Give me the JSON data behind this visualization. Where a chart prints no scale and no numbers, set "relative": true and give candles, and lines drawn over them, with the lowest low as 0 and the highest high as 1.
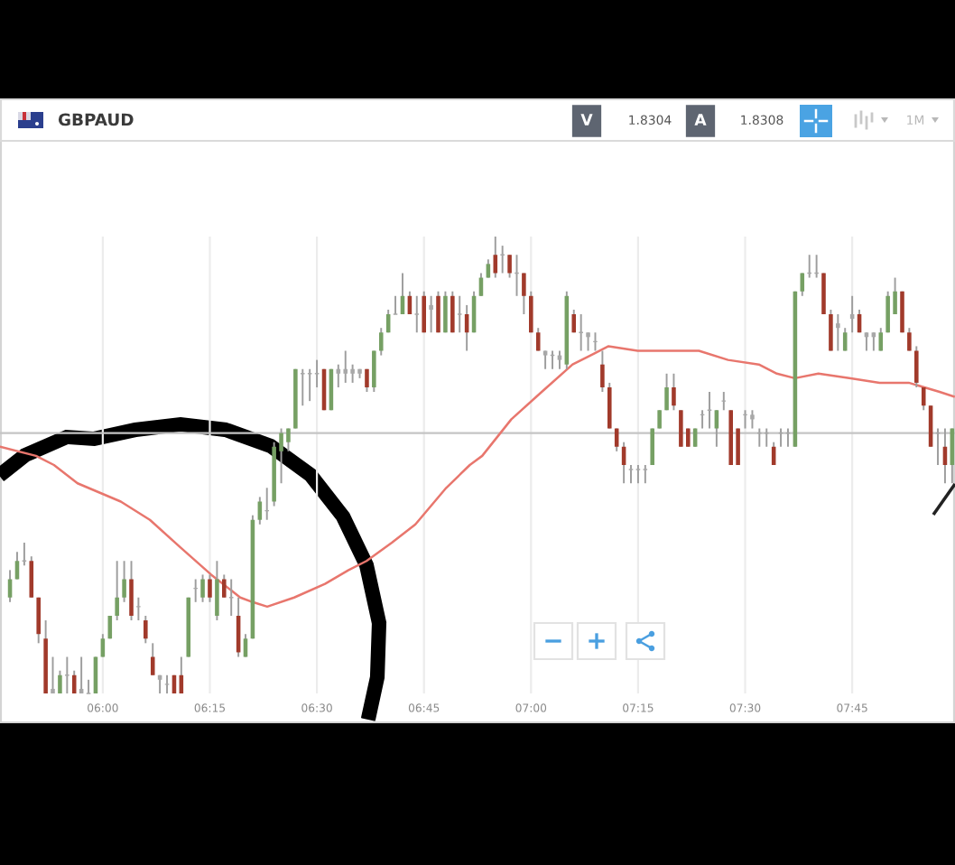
{
  "chart_data": {
    "type": "candlestick",
    "title": "GBPAUD",
    "relative": true,
    "x": [
      5.7833,
      5.8,
      5.8167,
      5.8333,
      5.85,
      5.8667,
      5.8833,
      5.9,
      5.9167,
      5.9333,
      5.95,
      5.9667,
      5.9833,
      6,
      6.0167,
      6.0333,
      6.05,
      6.0667,
      6.0833,
      6.1,
      6.1167,
      6.1333,
      6.15,
      6.1667,
      6.1833,
      6.2,
      6.2167,
      6.2333,
      6.25,
      6.2667,
      6.2833,
      6.3,
      6.3167,
      6.3333,
      6.35,
      6.3667,
      6.3833,
      6.4,
      6.4167,
      6.4333,
      6.45,
      6.4667,
      6.4833,
      6.5,
      6.5167,
      6.5333,
      6.55,
      6.5667,
      6.5833,
      6.6,
      6.6167,
      6.6333,
      6.65,
      6.6667,
      6.6833,
      6.7,
      6.7167,
      6.7333,
      6.75,
      6.7667,
      6.7833,
      6.8,
      6.8167,
      6.8333,
      6.85,
      6.8667,
      6.8833,
      6.9,
      6.9167,
      6.9333,
      6.95,
      6.9667,
      6.9833,
      7,
      7.0167,
      7.0333,
      7.05,
      7.0667,
      7.0833,
      7.1,
      7.1167,
      7.1333,
      7.15,
      7.1667,
      7.1833,
      7.2,
      7.2167,
      7.2333,
      7.25,
      7.2667,
      7.2833,
      7.3,
      7.3167,
      7.3333,
      7.35,
      7.3667,
      7.3833,
      7.4,
      7.4167,
      7.4333,
      7.45,
      7.4667,
      7.4833,
      7.5,
      7.5167,
      7.5333,
      7.55,
      7.5667,
      7.5833,
      7.6,
      7.6167,
      7.6333,
      7.65,
      7.6667,
      7.6833,
      7.7,
      7.7167,
      7.7333,
      7.75,
      7.7667,
      7.7833,
      7.8,
      7.8167,
      7.8333,
      7.85,
      7.8667,
      7.8833,
      7.9,
      7.9167,
      7.9333,
      7.95,
      7.9667,
      7.9833
    ],
    "ohlc": [
      [
        0.21,
        0.27,
        0.2,
        0.25
      ],
      [
        0.25,
        0.31,
        0.25,
        0.29
      ],
      [
        0.29,
        0.33,
        0.28,
        0.29
      ],
      [
        0.29,
        0.3,
        0.21,
        0.21
      ],
      [
        0.21,
        0.21,
        0.11,
        0.13
      ],
      [
        0.12,
        0.16,
        0.0,
        0.0
      ],
      [
        0.01,
        0.08,
        0.0,
        0.0
      ],
      [
        0.0,
        0.05,
        0.0,
        0.04
      ],
      [
        0.04,
        0.08,
        0.0,
        0.04
      ],
      [
        0.04,
        0.05,
        0.0,
        0.0
      ],
      [
        0.01,
        0.08,
        0.0,
        0.0
      ],
      [
        0.0,
        0.03,
        0.0,
        0.0
      ],
      [
        0.0,
        0.08,
        0.0,
        0.08
      ],
      [
        0.08,
        0.13,
        0.08,
        0.12
      ],
      [
        0.12,
        0.17,
        0.12,
        0.17
      ],
      [
        0.17,
        0.29,
        0.16,
        0.21
      ],
      [
        0.21,
        0.29,
        0.2,
        0.25
      ],
      [
        0.25,
        0.29,
        0.16,
        0.17
      ],
      [
        0.19,
        0.21,
        0.16,
        0.19
      ],
      [
        0.16,
        0.17,
        0.11,
        0.12
      ],
      [
        0.08,
        0.11,
        0.04,
        0.04
      ],
      [
        0.04,
        0.04,
        0.0,
        0.03
      ],
      [
        0.02,
        0.04,
        0.0,
        0.02
      ],
      [
        0.04,
        0.04,
        0.0,
        0.0
      ],
      [
        0.04,
        0.08,
        0.0,
        0.0
      ],
      [
        0.08,
        0.21,
        0.08,
        0.21
      ],
      [
        0.23,
        0.25,
        0.2,
        0.23
      ],
      [
        0.21,
        0.26,
        0.2,
        0.25
      ],
      [
        0.25,
        0.26,
        0.2,
        0.21
      ],
      [
        0.17,
        0.29,
        0.16,
        0.25
      ],
      [
        0.25,
        0.26,
        0.21,
        0.21
      ],
      [
        0.21,
        0.25,
        0.17,
        0.21
      ],
      [
        0.17,
        0.21,
        0.08,
        0.09
      ],
      [
        0.08,
        0.13,
        0.08,
        0.12
      ],
      [
        0.12,
        0.39,
        0.12,
        0.38
      ],
      [
        0.38,
        0.43,
        0.37,
        0.42
      ],
      [
        0.4,
        0.45,
        0.38,
        0.4
      ],
      [
        0.42,
        0.55,
        0.41,
        0.54
      ],
      [
        0.53,
        0.58,
        0.46,
        0.57
      ],
      [
        0.55,
        0.58,
        0.53,
        0.58
      ],
      [
        0.58,
        0.71,
        0.58,
        0.71
      ],
      [
        0.7,
        0.71,
        0.63,
        0.7
      ],
      [
        0.7,
        0.71,
        0.64,
        0.7
      ],
      [
        0.7,
        0.73,
        0.67,
        0.7
      ],
      [
        0.71,
        0.71,
        0.62,
        0.62
      ],
      [
        0.62,
        0.71,
        0.62,
        0.71
      ],
      [
        0.71,
        0.72,
        0.67,
        0.7
      ],
      [
        0.71,
        0.75,
        0.68,
        0.7
      ],
      [
        0.71,
        0.72,
        0.68,
        0.7
      ],
      [
        0.71,
        0.71,
        0.69,
        0.7
      ],
      [
        0.71,
        0.71,
        0.66,
        0.67
      ],
      [
        0.67,
        0.75,
        0.66,
        0.75
      ],
      [
        0.75,
        0.8,
        0.74,
        0.79
      ],
      [
        0.79,
        0.84,
        0.79,
        0.83
      ],
      [
        0.83,
        0.87,
        0.83,
        0.83
      ],
      [
        0.83,
        0.92,
        0.83,
        0.87
      ],
      [
        0.87,
        0.88,
        0.83,
        0.83
      ],
      [
        0.83,
        0.87,
        0.79,
        0.83
      ],
      [
        0.87,
        0.88,
        0.79,
        0.79
      ],
      [
        0.85,
        0.87,
        0.79,
        0.84
      ],
      [
        0.87,
        0.88,
        0.79,
        0.79
      ],
      [
        0.79,
        0.88,
        0.79,
        0.87
      ],
      [
        0.87,
        0.88,
        0.79,
        0.79
      ],
      [
        0.83,
        0.87,
        0.79,
        0.83
      ],
      [
        0.83,
        0.85,
        0.75,
        0.79
      ],
      [
        0.79,
        0.88,
        0.79,
        0.87
      ],
      [
        0.87,
        0.92,
        0.87,
        0.91
      ],
      [
        0.91,
        0.95,
        0.91,
        0.94
      ],
      [
        0.96,
        1.0,
        0.91,
        0.92
      ],
      [
        0.96,
        0.98,
        0.92,
        0.96
      ],
      [
        0.96,
        0.96,
        0.91,
        0.92
      ],
      [
        0.92,
        0.96,
        0.87,
        0.92
      ],
      [
        0.92,
        0.92,
        0.83,
        0.87
      ],
      [
        0.87,
        0.88,
        0.79,
        0.79
      ],
      [
        0.79,
        0.8,
        0.75,
        0.75
      ],
      [
        0.75,
        0.75,
        0.71,
        0.74
      ],
      [
        0.74,
        0.75,
        0.71,
        0.74
      ],
      [
        0.74,
        0.75,
        0.71,
        0.73
      ],
      [
        0.72,
        0.88,
        0.71,
        0.87
      ],
      [
        0.83,
        0.84,
        0.79,
        0.79
      ],
      [
        0.79,
        0.83,
        0.75,
        0.79
      ],
      [
        0.79,
        0.79,
        0.75,
        0.78
      ],
      [
        0.77,
        0.79,
        0.75,
        0.77
      ],
      [
        0.72,
        0.75,
        0.66,
        0.67
      ],
      [
        0.67,
        0.68,
        0.58,
        0.58
      ],
      [
        0.58,
        0.58,
        0.53,
        0.54
      ],
      [
        0.54,
        0.55,
        0.46,
        0.5
      ],
      [
        0.49,
        0.5,
        0.46,
        0.49
      ],
      [
        0.49,
        0.5,
        0.46,
        0.49
      ],
      [
        0.49,
        0.5,
        0.46,
        0.49
      ],
      [
        0.5,
        0.58,
        0.5,
        0.58
      ],
      [
        0.58,
        0.62,
        0.58,
        0.62
      ],
      [
        0.62,
        0.7,
        0.62,
        0.67
      ],
      [
        0.67,
        0.7,
        0.62,
        0.63
      ],
      [
        0.62,
        0.62,
        0.54,
        0.54
      ],
      [
        0.58,
        0.58,
        0.54,
        0.54
      ],
      [
        0.54,
        0.58,
        0.54,
        0.58
      ],
      [
        0.61,
        0.62,
        0.58,
        0.61
      ],
      [
        0.62,
        0.66,
        0.58,
        0.62
      ],
      [
        0.58,
        0.62,
        0.54,
        0.62
      ],
      [
        0.64,
        0.66,
        0.62,
        0.64
      ],
      [
        0.62,
        0.62,
        0.5,
        0.5
      ],
      [
        0.58,
        0.58,
        0.5,
        0.5
      ],
      [
        0.61,
        0.62,
        0.58,
        0.61
      ],
      [
        0.61,
        0.62,
        0.58,
        0.6
      ],
      [
        0.57,
        0.58,
        0.54,
        0.57
      ],
      [
        0.57,
        0.58,
        0.54,
        0.57
      ],
      [
        0.54,
        0.55,
        0.5,
        0.5
      ],
      [
        0.57,
        0.58,
        0.54,
        0.57
      ],
      [
        0.57,
        0.58,
        0.54,
        0.57
      ],
      [
        0.54,
        0.88,
        0.54,
        0.88
      ],
      [
        0.88,
        0.92,
        0.87,
        0.92
      ],
      [
        0.92,
        0.96,
        0.91,
        0.92
      ],
      [
        0.92,
        0.96,
        0.91,
        0.92
      ],
      [
        0.92,
        0.92,
        0.83,
        0.83
      ],
      [
        0.83,
        0.84,
        0.75,
        0.75
      ],
      [
        0.81,
        0.83,
        0.75,
        0.8
      ],
      [
        0.75,
        0.8,
        0.75,
        0.79
      ],
      [
        0.83,
        0.87,
        0.79,
        0.82
      ],
      [
        0.83,
        0.84,
        0.79,
        0.79
      ],
      [
        0.79,
        0.79,
        0.75,
        0.78
      ],
      [
        0.79,
        0.79,
        0.75,
        0.78
      ],
      [
        0.75,
        0.8,
        0.75,
        0.79
      ],
      [
        0.79,
        0.88,
        0.79,
        0.87
      ],
      [
        0.83,
        0.91,
        0.83,
        0.88
      ],
      [
        0.88,
        0.88,
        0.79,
        0.79
      ],
      [
        0.79,
        0.8,
        0.75,
        0.75
      ],
      [
        0.75,
        0.76,
        0.67,
        0.68
      ],
      [
        0.67,
        0.67,
        0.62,
        0.63
      ],
      [
        0.63,
        0.63,
        0.54,
        0.54
      ],
      [
        0.57,
        0.58,
        0.5,
        0.57
      ],
      [
        0.54,
        0.58,
        0.46,
        0.5
      ],
      [
        0.5,
        0.58,
        0.46,
        0.58
      ]
    ],
    "colors": [
      "#76a064",
      "#76a064",
      "#a8a8a8",
      "#a13a2b",
      "#a13a2b",
      "#a13a2b",
      "#a8a8a8",
      "#76a064",
      "#a8a8a8",
      "#a13a2b",
      "#a8a8a8",
      "#a8a8a8",
      "#76a064",
      "#76a064",
      "#76a064",
      "#76a064",
      "#76a064",
      "#a13a2b",
      "#a8a8a8",
      "#a13a2b",
      "#a13a2b",
      "#a8a8a8",
      "#a8a8a8",
      "#a13a2b",
      "#a13a2b",
      "#76a064",
      "#a8a8a8",
      "#76a064",
      "#a13a2b",
      "#76a064",
      "#a13a2b",
      "#a8a8a8",
      "#a13a2b",
      "#76a064",
      "#76a064",
      "#76a064",
      "#a8a8a8",
      "#76a064",
      "#76a064",
      "#76a064",
      "#76a064",
      "#a8a8a8",
      "#a8a8a8",
      "#a8a8a8",
      "#a13a2b",
      "#76a064",
      "#a8a8a8",
      "#a8a8a8",
      "#a8a8a8",
      "#a8a8a8",
      "#a13a2b",
      "#76a064",
      "#76a064",
      "#76a064",
      "#a8a8a8",
      "#76a064",
      "#a13a2b",
      "#a8a8a8",
      "#a13a2b",
      "#a8a8a8",
      "#a13a2b",
      "#76a064",
      "#a13a2b",
      "#a8a8a8",
      "#a13a2b",
      "#76a064",
      "#76a064",
      "#76a064",
      "#a13a2b",
      "#a8a8a8",
      "#a13a2b",
      "#a8a8a8",
      "#a13a2b",
      "#a13a2b",
      "#a13a2b",
      "#a8a8a8",
      "#a8a8a8",
      "#a8a8a8",
      "#76a064",
      "#a13a2b",
      "#a8a8a8",
      "#a8a8a8",
      "#a8a8a8",
      "#a13a2b",
      "#a13a2b",
      "#a13a2b",
      "#a13a2b",
      "#a8a8a8",
      "#a8a8a8",
      "#a8a8a8",
      "#76a064",
      "#76a064",
      "#76a064",
      "#a13a2b",
      "#a13a2b",
      "#a13a2b",
      "#76a064",
      "#a8a8a8",
      "#a8a8a8",
      "#76a064",
      "#a8a8a8",
      "#a13a2b",
      "#a13a2b",
      "#a8a8a8",
      "#a8a8a8",
      "#a8a8a8",
      "#a8a8a8",
      "#a13a2b",
      "#a8a8a8",
      "#a8a8a8",
      "#76a064",
      "#76a064",
      "#a8a8a8",
      "#a8a8a8",
      "#a13a2b",
      "#a13a2b",
      "#a8a8a8",
      "#76a064",
      "#a8a8a8",
      "#a13a2b",
      "#a8a8a8",
      "#a8a8a8",
      "#76a064",
      "#76a064",
      "#76a064",
      "#a13a2b",
      "#a13a2b",
      "#a13a2b",
      "#a13a2b",
      "#a13a2b",
      "#a8a8a8",
      "#a13a2b",
      "#76a064"
    ],
    "series": [
      {
        "type": "line",
        "color": "#e8766d",
        "x": [
          5.76,
          5.844,
          5.886,
          5.941,
          6.042,
          6.11,
          6.181,
          6.253,
          6.321,
          6.35,
          6.384,
          6.447,
          6.519,
          6.574,
          6.616,
          6.675,
          6.73,
          6.802,
          6.857,
          6.886,
          6.954,
          7.025,
          7.097,
          7.139,
          7.181,
          7.249,
          7.321,
          7.392,
          7.46,
          7.532,
          7.574,
          7.616,
          7.671,
          7.743,
          7.814,
          7.882,
          7.954,
          7.987
        ],
        "values": [
          0.54,
          0.52,
          0.5,
          0.46,
          0.42,
          0.38,
          0.32,
          0.26,
          0.21,
          0.2,
          0.19,
          0.21,
          0.24,
          0.27,
          0.29,
          0.33,
          0.37,
          0.45,
          0.5,
          0.52,
          0.6,
          0.66,
          0.72,
          0.74,
          0.76,
          0.75,
          0.75,
          0.75,
          0.73,
          0.72,
          0.7,
          0.69,
          0.7,
          0.69,
          0.68,
          0.68,
          0.66,
          0.65
        ]
      }
    ],
    "xlim": [
      5.76,
      7.99
    ],
    "xticks": [
      {
        "value": 6,
        "label": "06:00"
      },
      {
        "value": 6.25,
        "label": "06:15"
      },
      {
        "value": 6.5,
        "label": "06:30"
      },
      {
        "value": 6.75,
        "label": "06:45"
      },
      {
        "value": 7,
        "label": "07:00"
      },
      {
        "value": 7.25,
        "label": "07:15"
      },
      {
        "value": 7.5,
        "label": "07:30"
      },
      {
        "value": 7.75,
        "label": "07:45"
      }
    ],
    "ref_lines": [
      {
        "axis": "y",
        "value": 0.57,
        "color": "#c4c4c4"
      }
    ],
    "grid": "x",
    "annotations": [
      "V",
      "1.8304",
      "A",
      "1.8308",
      "1M"
    ]
  }
}
